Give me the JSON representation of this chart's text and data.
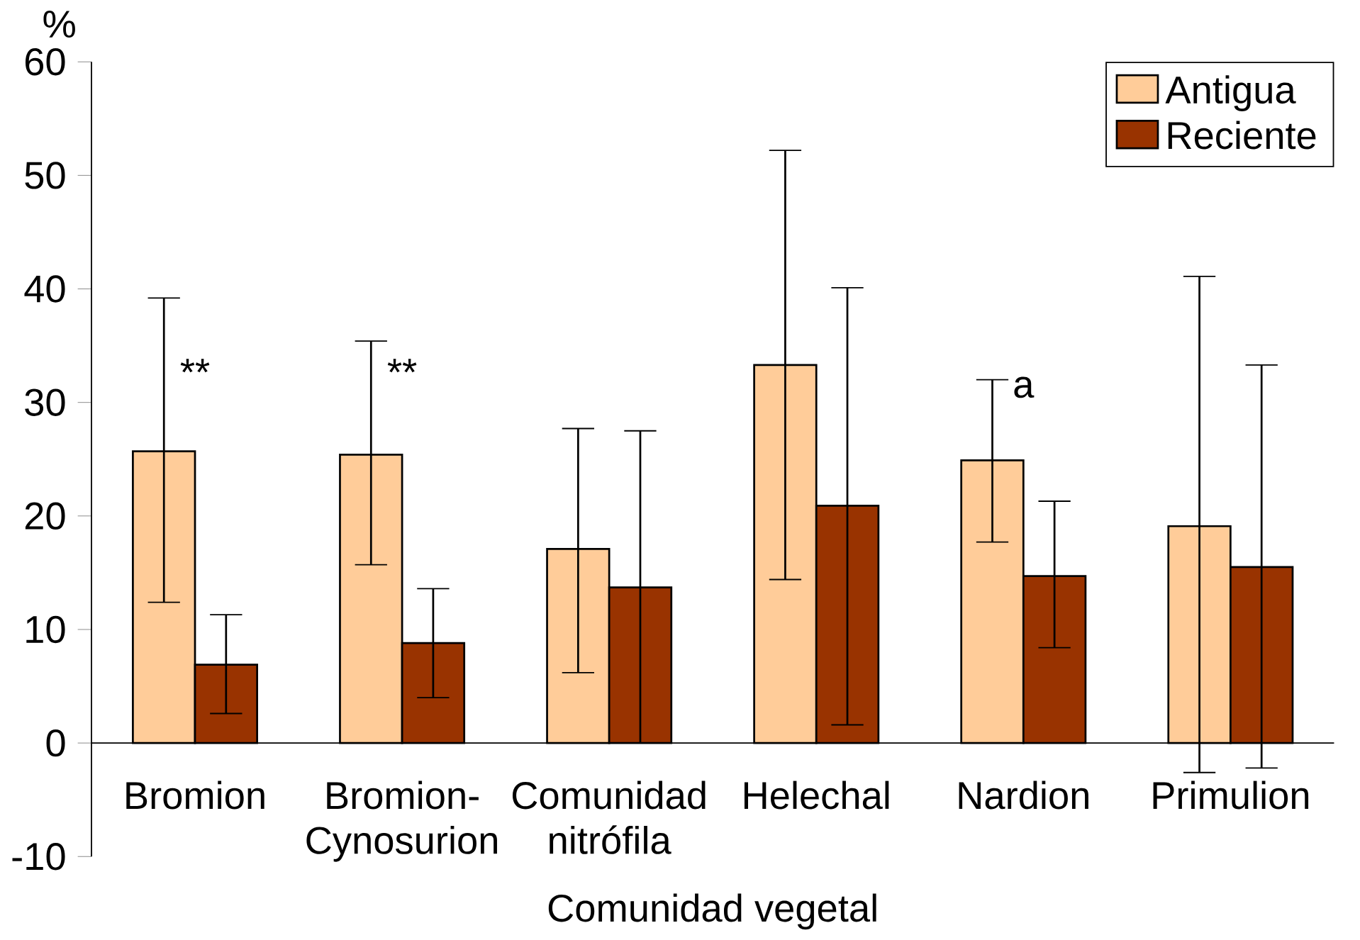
{
  "chart_data": {
    "type": "bar",
    "ylabel": "%",
    "xlabel": "Comunidad vegetal",
    "categories": [
      "Bromion",
      "Bromion-Cynosurion",
      "Comunidad nitrófila",
      "Helechal",
      "Nardion",
      "Primulion"
    ],
    "series": [
      {
        "name": "Antigua",
        "color": "#ffcc99",
        "values": [
          25.7,
          25.4,
          17.1,
          33.3,
          24.9,
          19.1
        ],
        "errors": [
          [
            12.4,
            39.2
          ],
          [
            15.7,
            35.4
          ],
          [
            6.2,
            27.7
          ],
          [
            14.4,
            52.2
          ],
          [
            17.7,
            32.0
          ],
          [
            -2.6,
            41.1
          ]
        ]
      },
      {
        "name": "Reciente",
        "color": "#993300",
        "values": [
          6.9,
          8.8,
          13.7,
          20.9,
          14.7,
          15.5
        ],
        "errors": [
          [
            2.6,
            11.3
          ],
          [
            4.0,
            13.6
          ],
          [
            0.0,
            27.5
          ],
          [
            1.6,
            40.1
          ],
          [
            8.4,
            21.3
          ],
          [
            -2.2,
            33.3
          ]
        ]
      }
    ],
    "annotations": [
      "**",
      "**",
      "a"
    ],
    "ylim": [
      -10,
      60
    ],
    "yticks": [
      -10,
      0,
      10,
      20,
      30,
      40,
      50,
      60
    ],
    "grid": false,
    "legend": "top right"
  }
}
